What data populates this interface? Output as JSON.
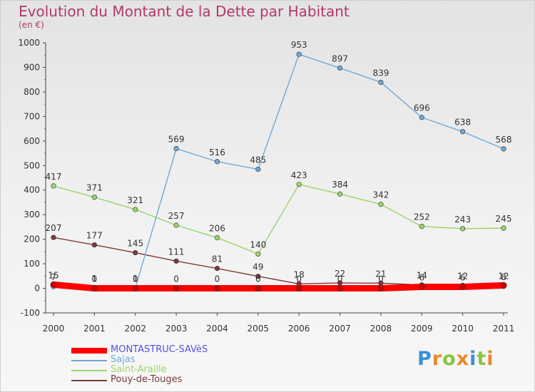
{
  "header": {
    "title": "Evolution du Montant de la Dette par Habitant",
    "subtitle": "(en €)"
  },
  "logo": {
    "text": "Proxiti",
    "letter_colors": [
      "#3a8fd9",
      "#e8892a",
      "#8ac43f",
      "#e8892a",
      "#3a8fd9",
      "#8ac43f",
      "#e8892a"
    ]
  },
  "chart_data": {
    "type": "line",
    "title": "Evolution du Montant de la Dette par Habitant",
    "subtitle": "(en €)",
    "xlabel": "",
    "ylabel": "",
    "x": [
      "2000",
      "2001",
      "2002",
      "2003",
      "2004",
      "2005",
      "2006",
      "2007",
      "2008",
      "2009",
      "2010",
      "2011"
    ],
    "ylim": [
      -100,
      1000
    ],
    "yticks": [
      "-100",
      "0",
      "100",
      "200",
      "300",
      "400",
      "500",
      "600",
      "700",
      "800",
      "900",
      "1000"
    ],
    "grid": false,
    "legend_position": "bottom-left",
    "series": [
      {
        "name": "MONTASTRUC-SAVèS",
        "color": "#ff0000",
        "values": [
          15,
          0,
          0,
          0,
          0,
          0,
          0,
          0,
          0,
          6,
          6,
          12
        ],
        "labels": [
          "15",
          "0",
          "0",
          "0",
          "0",
          "0",
          "0",
          "0",
          "0",
          "6",
          "6",
          "12"
        ]
      },
      {
        "name": "Sajas",
        "color": "#6fa8d6",
        "values": [
          7,
          1,
          1,
          569,
          516,
          485,
          953,
          897,
          839,
          696,
          638,
          568
        ],
        "labels": [
          "7",
          "1",
          "1",
          "569",
          "516",
          "485",
          "953",
          "897",
          "839",
          "696",
          "638",
          "568"
        ]
      },
      {
        "name": "Saint-Araille",
        "color": "#9ad46e",
        "values": [
          417,
          371,
          321,
          257,
          206,
          140,
          423,
          384,
          342,
          252,
          243,
          245
        ],
        "labels": [
          "417",
          "371",
          "321",
          "257",
          "206",
          "140",
          "423",
          "384",
          "342",
          "252",
          "243",
          "245"
        ]
      },
      {
        "name": "Pouy-de-Touges",
        "color": "#7a3a3a",
        "values": [
          207,
          177,
          145,
          111,
          81,
          49,
          18,
          22,
          21,
          14,
          12,
          8
        ],
        "labels": [
          "207",
          "177",
          "145",
          "111",
          "81",
          "49",
          "18",
          "22",
          "21",
          "14",
          "12",
          "8"
        ]
      }
    ]
  }
}
